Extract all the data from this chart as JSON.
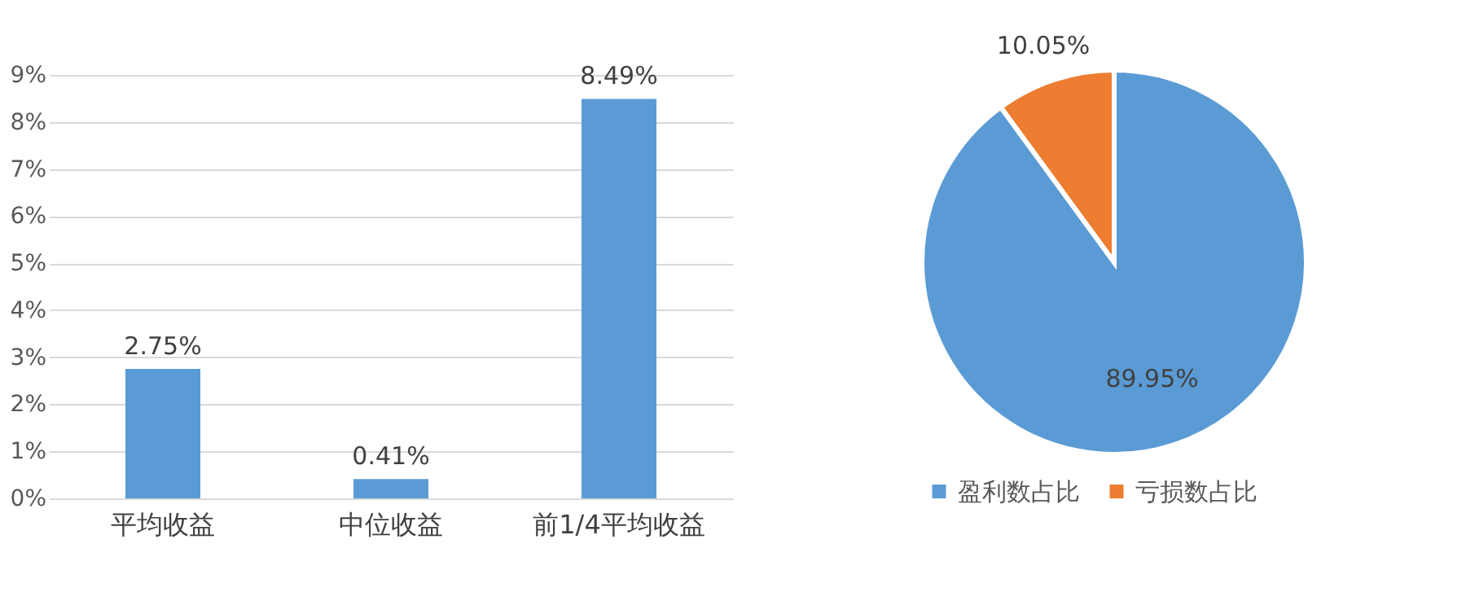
{
  "chart_data": [
    {
      "type": "bar",
      "categories": [
        "平均收益",
        "中位收益",
        "前1/4平均收益"
      ],
      "values": [
        2.75,
        0.41,
        8.49
      ],
      "color": "#5b9bd5",
      "value_labels": [
        "2.75%",
        "0.41%",
        "8.49%"
      ],
      "ylim": [
        0,
        9
      ],
      "yticks": [
        {
          "value": 0,
          "label": "0%"
        },
        {
          "value": 1,
          "label": "1%"
        },
        {
          "value": 2,
          "label": "2%"
        },
        {
          "value": 3,
          "label": "3%"
        },
        {
          "value": 4,
          "label": "4%"
        },
        {
          "value": 5,
          "label": "5%"
        },
        {
          "value": 6,
          "label": "6%"
        },
        {
          "value": 7,
          "label": "7%"
        },
        {
          "value": 8,
          "label": "8%"
        },
        {
          "value": 9,
          "label": "9%"
        }
      ],
      "grid": "y"
    },
    {
      "type": "pie",
      "categories": [
        "盈利数占比",
        "亏损数占比"
      ],
      "values": [
        89.95,
        10.05
      ],
      "colors": [
        "#5b9bd5",
        "#ed7d31"
      ],
      "value_labels": [
        "89.95%",
        "10.05%"
      ],
      "legend": "bottom"
    }
  ]
}
